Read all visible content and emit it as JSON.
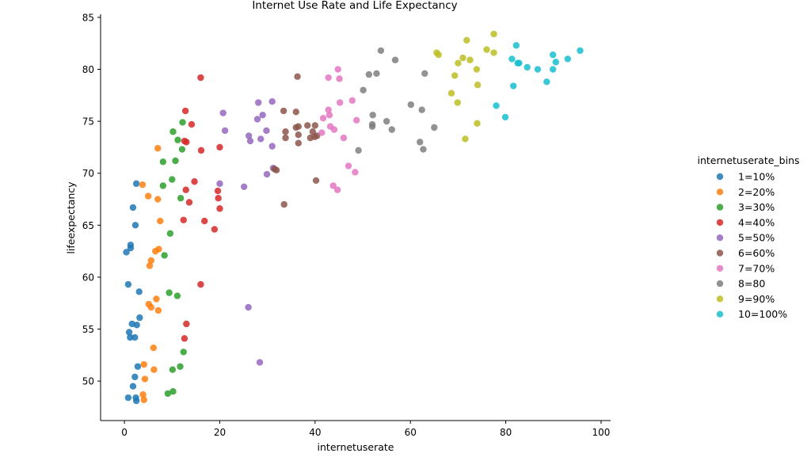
{
  "chart_data": {
    "type": "scatter",
    "title": "Internet Use Rate and Life Expectancy",
    "xlabel": "internetuserate",
    "ylabel": "lifeexpectancy",
    "xlim": [
      -5,
      102
    ],
    "ylim": [
      46.2,
      85.3
    ],
    "xticks": [
      "0",
      "20",
      "40",
      "60",
      "80",
      "100"
    ],
    "yticks": [
      "50",
      "55",
      "60",
      "65",
      "70",
      "75",
      "80",
      "85"
    ],
    "grid": false,
    "legend_title": "internetuserate_bins",
    "legend_position": "right",
    "series": [
      {
        "name": "1=10%",
        "color": "#1f77b4",
        "points": [
          [
            0.4,
            62.4
          ],
          [
            1.3,
            62.8
          ],
          [
            1.3,
            63.1
          ],
          [
            1.8,
            66.7
          ],
          [
            2.3,
            65.0
          ],
          [
            2.5,
            69.0
          ],
          [
            0.8,
            59.3
          ],
          [
            3.1,
            58.6
          ],
          [
            3.2,
            56.1
          ],
          [
            1.6,
            55.5
          ],
          [
            2.6,
            55.4
          ],
          [
            1.0,
            54.7
          ],
          [
            1.2,
            54.2
          ],
          [
            2.2,
            54.2
          ],
          [
            2.8,
            51.4
          ],
          [
            2.2,
            50.4
          ],
          [
            1.8,
            49.5
          ],
          [
            0.8,
            48.4
          ],
          [
            2.4,
            48.4
          ],
          [
            2.5,
            48.1
          ]
        ]
      },
      {
        "name": "2=20%",
        "color": "#ff7f0e",
        "points": [
          [
            7.0,
            72.4
          ],
          [
            3.8,
            68.9
          ],
          [
            5.0,
            67.8
          ],
          [
            7.0,
            67.5
          ],
          [
            7.5,
            65.4
          ],
          [
            7.2,
            62.7
          ],
          [
            6.5,
            62.5
          ],
          [
            5.6,
            61.6
          ],
          [
            5.3,
            61.1
          ],
          [
            6.7,
            57.9
          ],
          [
            5.1,
            57.4
          ],
          [
            5.6,
            57.1
          ],
          [
            7.1,
            56.8
          ],
          [
            6.1,
            53.2
          ],
          [
            4.1,
            51.6
          ],
          [
            6.2,
            51.1
          ],
          [
            4.3,
            50.2
          ],
          [
            3.9,
            48.7
          ],
          [
            4.1,
            48.2
          ]
        ]
      },
      {
        "name": "3=30%",
        "color": "#2ca02c",
        "points": [
          [
            12.2,
            74.9
          ],
          [
            10.2,
            74.0
          ],
          [
            11.2,
            73.2
          ],
          [
            12.1,
            72.3
          ],
          [
            10.7,
            71.2
          ],
          [
            8.1,
            71.1
          ],
          [
            10.0,
            69.4
          ],
          [
            8.1,
            68.8
          ],
          [
            11.8,
            67.6
          ],
          [
            9.6,
            64.2
          ],
          [
            8.4,
            62.1
          ],
          [
            9.4,
            58.5
          ],
          [
            11.1,
            58.2
          ],
          [
            12.4,
            52.8
          ],
          [
            11.7,
            51.4
          ],
          [
            10.1,
            51.1
          ],
          [
            9.1,
            48.8
          ],
          [
            10.2,
            49.0
          ]
        ]
      },
      {
        "name": "4=40%",
        "color": "#d62728",
        "points": [
          [
            16.0,
            79.2
          ],
          [
            12.8,
            76.0
          ],
          [
            14.1,
            74.7
          ],
          [
            12.6,
            73.1
          ],
          [
            13.0,
            73.0
          ],
          [
            16.1,
            72.2
          ],
          [
            20.0,
            72.5
          ],
          [
            14.7,
            69.2
          ],
          [
            12.9,
            68.4
          ],
          [
            19.6,
            68.3
          ],
          [
            19.7,
            67.6
          ],
          [
            13.6,
            67.2
          ],
          [
            20.0,
            66.6
          ],
          [
            12.4,
            65.5
          ],
          [
            16.8,
            65.4
          ],
          [
            18.9,
            64.6
          ],
          [
            16.0,
            59.3
          ],
          [
            13.0,
            55.5
          ],
          [
            12.6,
            54.1
          ]
        ]
      },
      {
        "name": "5=50%",
        "color": "#9467bd",
        "points": [
          [
            20.7,
            75.8
          ],
          [
            28.1,
            76.8
          ],
          [
            31.0,
            76.9
          ],
          [
            29.0,
            75.6
          ],
          [
            27.9,
            75.2
          ],
          [
            21.1,
            74.1
          ],
          [
            29.8,
            74.1
          ],
          [
            26.1,
            73.6
          ],
          [
            26.4,
            73.1
          ],
          [
            28.6,
            73.3
          ],
          [
            31.0,
            72.6
          ],
          [
            31.2,
            70.5
          ],
          [
            29.9,
            69.9
          ],
          [
            20.0,
            69.0
          ],
          [
            25.1,
            68.7
          ],
          [
            26.0,
            57.1
          ],
          [
            28.4,
            51.8
          ]
        ]
      },
      {
        "name": "6=60%",
        "color": "#8c564b",
        "points": [
          [
            36.3,
            79.3
          ],
          [
            33.4,
            76.0
          ],
          [
            36.0,
            75.9
          ],
          [
            36.0,
            74.4
          ],
          [
            36.5,
            74.5
          ],
          [
            38.4,
            74.6
          ],
          [
            40.0,
            74.6
          ],
          [
            33.8,
            74.0
          ],
          [
            39.5,
            74.0
          ],
          [
            39.0,
            73.4
          ],
          [
            39.9,
            73.5
          ],
          [
            40.4,
            73.6
          ],
          [
            33.8,
            73.4
          ],
          [
            36.5,
            73.7
          ],
          [
            36.5,
            72.9
          ],
          [
            31.5,
            70.4
          ],
          [
            31.9,
            70.3
          ],
          [
            40.2,
            69.3
          ],
          [
            33.5,
            67.0
          ]
        ]
      },
      {
        "name": "7=70%",
        "color": "#e377c2",
        "points": [
          [
            44.8,
            80.0
          ],
          [
            42.8,
            79.2
          ],
          [
            45.1,
            79.1
          ],
          [
            45.2,
            76.8
          ],
          [
            47.8,
            77.0
          ],
          [
            42.8,
            76.1
          ],
          [
            43.0,
            75.6
          ],
          [
            41.7,
            75.3
          ],
          [
            48.7,
            75.1
          ],
          [
            43.2,
            74.5
          ],
          [
            44.0,
            74.2
          ],
          [
            41.4,
            73.9
          ],
          [
            46.0,
            73.4
          ],
          [
            47.0,
            70.7
          ],
          [
            48.4,
            70.1
          ],
          [
            43.8,
            68.8
          ],
          [
            44.7,
            68.4
          ]
        ]
      },
      {
        "name": "8=80",
        "color": "#7f7f7f",
        "points": [
          [
            53.8,
            81.8
          ],
          [
            56.8,
            80.9
          ],
          [
            52.9,
            79.6
          ],
          [
            51.3,
            79.5
          ],
          [
            63.0,
            79.6
          ],
          [
            50.1,
            78.0
          ],
          [
            60.1,
            76.6
          ],
          [
            62.4,
            76.1
          ],
          [
            52.1,
            75.6
          ],
          [
            55.0,
            75.0
          ],
          [
            52.0,
            74.7
          ],
          [
            52.0,
            74.5
          ],
          [
            56.1,
            74.2
          ],
          [
            65.0,
            74.4
          ],
          [
            62.0,
            73.0
          ],
          [
            49.1,
            72.2
          ],
          [
            62.7,
            72.3
          ]
        ]
      },
      {
        "name": "9=90%",
        "color": "#bcbd22",
        "points": [
          [
            71.8,
            82.8
          ],
          [
            77.5,
            83.4
          ],
          [
            65.5,
            81.6
          ],
          [
            65.9,
            81.4
          ],
          [
            76.0,
            81.9
          ],
          [
            77.5,
            81.6
          ],
          [
            71.0,
            81.1
          ],
          [
            72.5,
            80.9
          ],
          [
            70.0,
            80.6
          ],
          [
            73.9,
            80.0
          ],
          [
            69.3,
            79.4
          ],
          [
            74.1,
            78.5
          ],
          [
            68.6,
            77.7
          ],
          [
            69.9,
            76.8
          ],
          [
            74.0,
            74.8
          ],
          [
            71.5,
            73.3
          ]
        ]
      },
      {
        "name": "10=100%",
        "color": "#17becf",
        "points": [
          [
            82.2,
            82.3
          ],
          [
            95.6,
            81.8
          ],
          [
            81.3,
            81.0
          ],
          [
            82.5,
            80.6
          ],
          [
            82.8,
            80.6
          ],
          [
            84.5,
            80.2
          ],
          [
            86.7,
            80.0
          ],
          [
            89.9,
            81.4
          ],
          [
            90.5,
            80.7
          ],
          [
            93.0,
            81.0
          ],
          [
            88.6,
            78.8
          ],
          [
            81.6,
            78.4
          ],
          [
            89.9,
            80.0
          ],
          [
            78.0,
            76.5
          ],
          [
            79.9,
            75.4
          ]
        ]
      }
    ]
  }
}
